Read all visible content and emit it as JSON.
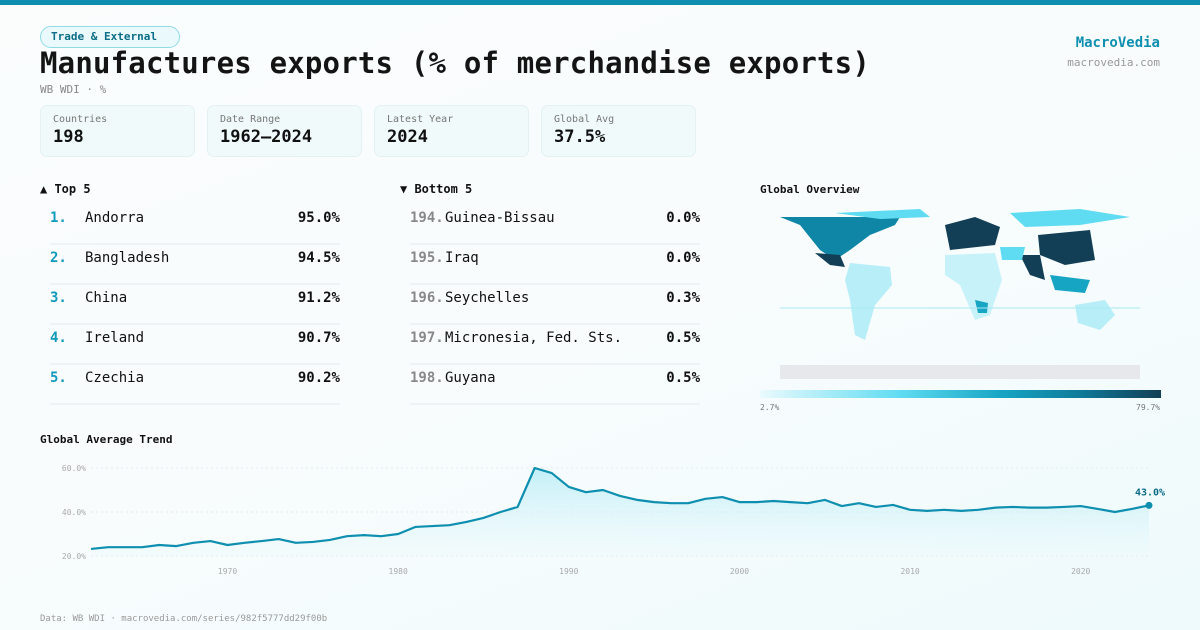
{
  "header": {
    "category": "Trade & External",
    "title": "Manufactures exports (% of merchandise exports)",
    "subtitle": "WB WDI · %",
    "brand": "MacroVedia",
    "brand_url": "macrovedia.com"
  },
  "stats": [
    {
      "label": "Countries",
      "value": "198"
    },
    {
      "label": "Date Range",
      "value": "1962–2024"
    },
    {
      "label": "Latest Year",
      "value": "2024"
    },
    {
      "label": "Global Avg",
      "value": "37.5%"
    }
  ],
  "top": {
    "heading": "▲ Top 5",
    "items": [
      {
        "rank": "1.",
        "name": "Andorra",
        "value": "95.0%"
      },
      {
        "rank": "2.",
        "name": "Bangladesh",
        "value": "94.5%"
      },
      {
        "rank": "3.",
        "name": "China",
        "value": "91.2%"
      },
      {
        "rank": "4.",
        "name": "Ireland",
        "value": "90.7%"
      },
      {
        "rank": "5.",
        "name": "Czechia",
        "value": "90.2%"
      }
    ]
  },
  "bottom": {
    "heading": "▼ Bottom 5",
    "items": [
      {
        "rank": "194.",
        "name": "Guinea-Bissau",
        "value": "0.0%"
      },
      {
        "rank": "195.",
        "name": "Iraq",
        "value": "0.0%"
      },
      {
        "rank": "196.",
        "name": "Seychelles",
        "value": "0.3%"
      },
      {
        "rank": "197.",
        "name": "Micronesia, Fed. Sts.",
        "value": "0.5%"
      },
      {
        "rank": "198.",
        "name": "Guyana",
        "value": "0.5%"
      }
    ]
  },
  "map": {
    "heading": "Global Overview",
    "legend_min": "2.7%",
    "legend_max": "79.7%",
    "colors": [
      "#eafafd",
      "#5fdcf2",
      "#17a5c4",
      "#107a99",
      "#123f55"
    ]
  },
  "footer": "Data: WB WDI · macrovedia.com/series/982f5777dd29f00b",
  "chart_data": {
    "type": "area",
    "title": "Global Average Trend",
    "x_ticks": [
      "1970",
      "1980",
      "1990",
      "2000",
      "2010",
      "2020"
    ],
    "y_ticks": [
      "20.0%",
      "40.0%",
      "60.0%"
    ],
    "ylim": [
      20,
      60
    ],
    "xlim": [
      1962,
      2024
    ],
    "grid": true,
    "color": "#0e8fb0",
    "last_label": "43.0%",
    "x": [
      1962,
      1963,
      1964,
      1965,
      1966,
      1967,
      1968,
      1969,
      1970,
      1971,
      1972,
      1973,
      1974,
      1975,
      1976,
      1977,
      1978,
      1979,
      1980,
      1981,
      1982,
      1983,
      1984,
      1985,
      1986,
      1987,
      1988,
      1989,
      1990,
      1991,
      1992,
      1993,
      1994,
      1995,
      1996,
      1997,
      1998,
      1999,
      2000,
      2001,
      2002,
      2003,
      2004,
      2005,
      2006,
      2007,
      2008,
      2009,
      2010,
      2011,
      2012,
      2013,
      2014,
      2015,
      2016,
      2017,
      2018,
      2019,
      2020,
      2021,
      2022,
      2023,
      2024
    ],
    "y": [
      23.2,
      24,
      24,
      24,
      25,
      24.5,
      26,
      26.8,
      25,
      26,
      26.8,
      27.7,
      26,
      26.4,
      27.3,
      29,
      29.5,
      29,
      30,
      33.2,
      33.6,
      34,
      35.5,
      37.3,
      40,
      42.3,
      60,
      57.7,
      51.4,
      49,
      50,
      47.3,
      45.5,
      44.5,
      44,
      44,
      46,
      46.8,
      44.5,
      44.5,
      45,
      44.5,
      44,
      45.5,
      42.7,
      44,
      42.3,
      43.2,
      41,
      40.5,
      41,
      40.5,
      41,
      42,
      42.3,
      42,
      42,
      42.3,
      42.7,
      41.4,
      40,
      41.4,
      43.0
    ]
  }
}
